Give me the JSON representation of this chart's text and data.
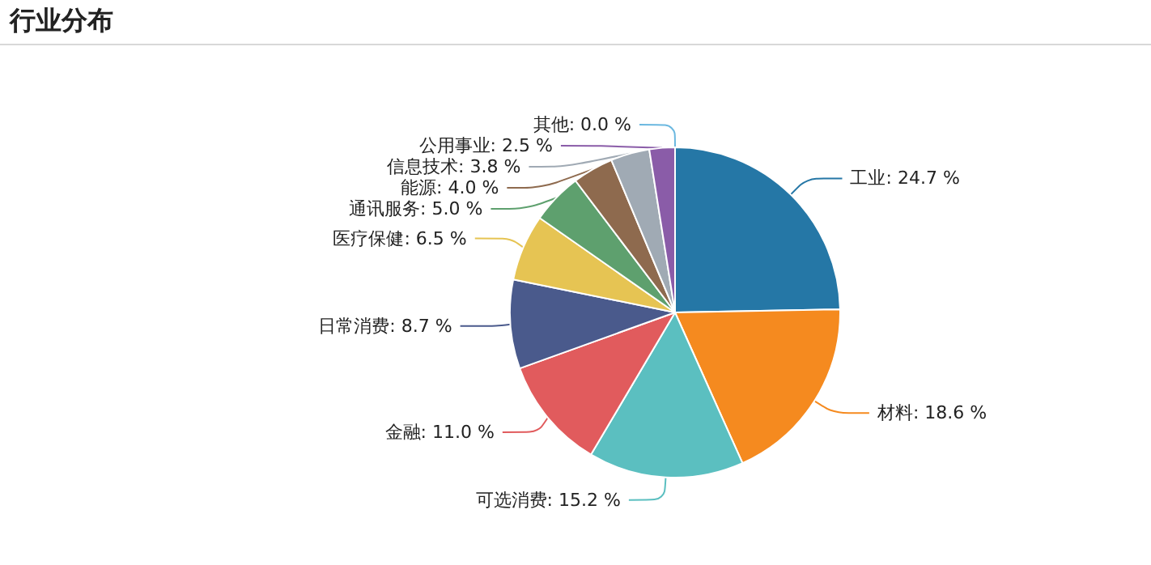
{
  "chart_data": {
    "type": "pie",
    "title": "行业分布",
    "categories": [
      "工业",
      "材料",
      "可选消费",
      "金融",
      "日常消费",
      "医疗保健",
      "通讯服务",
      "能源",
      "信息技术",
      "公用事业",
      "其他"
    ],
    "values": [
      24.7,
      18.6,
      15.2,
      11.0,
      8.7,
      6.5,
      5.0,
      4.0,
      3.8,
      2.5,
      0.0
    ],
    "value_labels": [
      "24.7 %",
      "18.6 %",
      "15.2 %",
      "11.0 %",
      "8.7 %",
      "6.5 %",
      "5.0 %",
      "4.0 %",
      "3.8 %",
      "2.5 %",
      "0.0 %"
    ],
    "colors": [
      "#2577a6",
      "#f58a1f",
      "#5bbfc0",
      "#e15b5d",
      "#4a5a8c",
      "#e6c453",
      "#5ea06e",
      "#8e6a4e",
      "#a0aab4",
      "#8a5ca8",
      "#6bb8e0"
    ]
  }
}
